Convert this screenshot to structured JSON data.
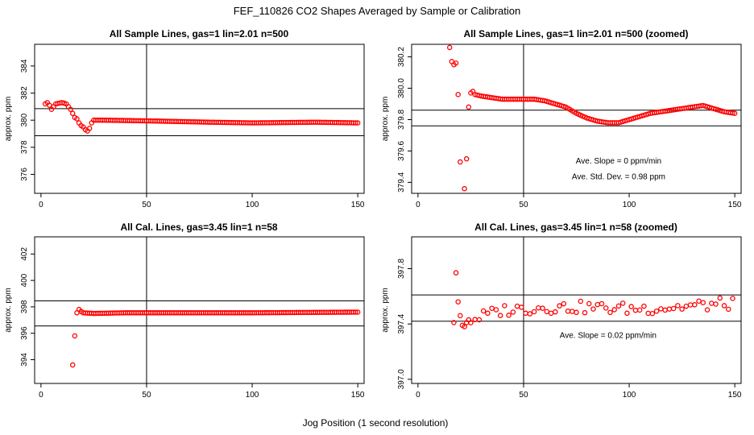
{
  "page": {
    "title": "FEF_110826  CO2 Shapes Averaged by Sample or Calibration",
    "xlabel": "Jog Position (1 second resolution)"
  },
  "colors": {
    "points": "#ff0000",
    "lines": "#000000",
    "background": "#ffffff"
  },
  "chart_data": [
    {
      "type": "scatter",
      "title": "All Sample Lines, gas=1 lin=2.01 n=500",
      "ylabel": "approx. ppm",
      "xlim": [
        -3,
        153
      ],
      "ylim": [
        374.6,
        385.6
      ],
      "xticks": [
        0,
        50,
        100,
        150
      ],
      "yticks": [
        376,
        378,
        380,
        382,
        384
      ],
      "vline": 50,
      "hlines": [
        378.85,
        380.85
      ],
      "annotations": [],
      "series": [
        {
          "name": "samples",
          "anchors": [
            [
              2,
              381.2
            ],
            [
              3,
              381.3
            ],
            [
              4,
              381.1
            ],
            [
              5,
              380.8
            ],
            [
              6,
              381.0
            ],
            [
              7,
              381.2
            ],
            [
              10,
              381.3
            ],
            [
              12,
              381.2
            ],
            [
              13,
              381.0
            ],
            [
              14,
              380.8
            ],
            [
              15,
              380.5
            ],
            [
              16,
              380.2
            ],
            [
              17,
              380.1
            ],
            [
              18,
              379.8
            ],
            [
              19,
              379.6
            ],
            [
              20,
              379.5
            ],
            [
              21,
              379.3
            ],
            [
              22,
              379.2
            ],
            [
              23,
              379.4
            ],
            [
              24,
              379.8
            ],
            [
              25,
              380.0
            ],
            [
              30,
              380.0
            ],
            [
              50,
              379.95
            ],
            [
              80,
              379.85
            ],
            [
              100,
              379.8
            ],
            [
              130,
              379.85
            ],
            [
              150,
              379.8
            ]
          ],
          "x_start": 2,
          "x_end": 150,
          "x_step": 1
        }
      ]
    },
    {
      "type": "scatter",
      "title": "All Sample Lines, gas=1 lin=2.01 n=500 (zoomed)",
      "ylabel": "approx. ppm",
      "xlim": [
        -3,
        153
      ],
      "ylim": [
        379.33,
        380.28
      ],
      "xticks": [
        0,
        50,
        100,
        150
      ],
      "yticks": [
        379.4,
        379.6,
        379.8,
        380.0,
        380.2
      ],
      "vline": 50,
      "hlines": [
        379.86,
        379.76
      ],
      "annotations": [
        {
          "text": "Ave. Slope =  0  ppm/min",
          "x": 95,
          "y": 379.52
        },
        {
          "text": "Ave. Std. Dev. =  0.98  ppm",
          "x": 95,
          "y": 379.42
        }
      ],
      "series": [
        {
          "name": "samples",
          "points": [
            [
              15,
              380.26
            ],
            [
              16,
              380.17
            ],
            [
              17,
              380.15
            ],
            [
              18,
              380.16
            ],
            [
              19,
              379.96
            ],
            [
              20,
              379.53
            ],
            [
              22,
              379.36
            ],
            [
              23,
              379.55
            ],
            [
              24,
              379.88
            ]
          ],
          "anchors": [
            [
              25,
              379.97
            ],
            [
              26,
              379.98
            ],
            [
              27,
              379.96
            ],
            [
              30,
              379.95
            ],
            [
              35,
              379.94
            ],
            [
              40,
              379.93
            ],
            [
              45,
              379.93
            ],
            [
              50,
              379.93
            ],
            [
              55,
              379.93
            ],
            [
              60,
              379.92
            ],
            [
              65,
              379.9
            ],
            [
              70,
              379.88
            ],
            [
              75,
              379.84
            ],
            [
              80,
              379.81
            ],
            [
              85,
              379.79
            ],
            [
              90,
              379.78
            ],
            [
              95,
              379.78
            ],
            [
              100,
              379.8
            ],
            [
              105,
              379.82
            ],
            [
              110,
              379.84
            ],
            [
              115,
              379.85
            ],
            [
              120,
              379.86
            ],
            [
              125,
              379.87
            ],
            [
              130,
              379.88
            ],
            [
              135,
              379.89
            ],
            [
              140,
              379.87
            ],
            [
              145,
              379.85
            ],
            [
              150,
              379.84
            ]
          ],
          "x_start": 25,
          "x_end": 150,
          "x_step": 1
        }
      ]
    },
    {
      "type": "scatter",
      "title": "All Cal. Lines, gas=3.45 lin=1 n=58",
      "ylabel": "approx. ppm",
      "xlim": [
        -3,
        153
      ],
      "ylim": [
        392.2,
        403.3
      ],
      "xticks": [
        0,
        50,
        100,
        150
      ],
      "yticks": [
        394,
        396,
        398,
        400,
        402
      ],
      "vline": 50,
      "hlines": [
        398.45,
        396.55
      ],
      "annotations": [],
      "series": [
        {
          "name": "calibrations",
          "points": [
            [
              15,
              393.6
            ],
            [
              16,
              395.8
            ]
          ],
          "anchors": [
            [
              17,
              397.55
            ],
            [
              18,
              397.8
            ],
            [
              19,
              397.65
            ],
            [
              20,
              397.55
            ],
            [
              25,
              397.5
            ],
            [
              40,
              397.55
            ],
            [
              60,
              397.55
            ],
            [
              100,
              397.55
            ],
            [
              150,
              397.6
            ]
          ],
          "x_start": 17,
          "x_end": 150,
          "x_step": 1
        }
      ]
    },
    {
      "type": "scatter",
      "title": "All Cal. Lines, gas=3.45 lin=1 n=58 (zoomed)",
      "ylabel": "approx. ppm",
      "xlim": [
        -3,
        153
      ],
      "ylim": [
        396.97,
        398.03
      ],
      "xticks": [
        0,
        50,
        100,
        150
      ],
      "yticks": [
        397.0,
        397.4,
        397.8
      ],
      "vline": 50,
      "hlines": [
        397.61,
        397.42
      ],
      "annotations": [
        {
          "text": "Ave. Slope =  0.02  ppm/min",
          "x": 90,
          "y": 397.3
        }
      ],
      "series": [
        {
          "name": "calibrations",
          "points": [
            [
              17,
              397.41
            ],
            [
              18,
              397.77
            ],
            [
              19,
              397.56
            ],
            [
              20,
              397.46
            ],
            [
              21,
              397.39
            ],
            [
              22,
              397.38
            ],
            [
              23,
              397.41
            ],
            [
              24,
              397.43
            ]
          ],
          "anchors": [
            [
              25,
              397.43
            ],
            [
              40,
              397.5
            ],
            [
              60,
              397.52
            ],
            [
              80,
              397.52
            ],
            [
              100,
              397.51
            ],
            [
              120,
              397.52
            ],
            [
              150,
              397.55
            ]
          ],
          "x_start": 25,
          "x_end": 150,
          "x_step": 2,
          "jitter": 0.045
        }
      ]
    }
  ]
}
